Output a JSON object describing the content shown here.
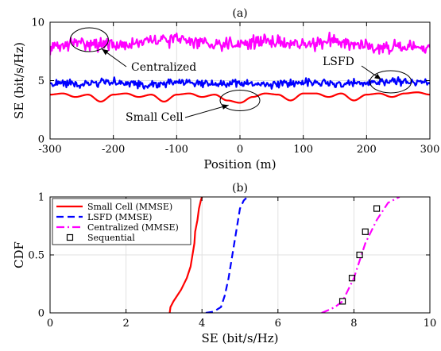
{
  "chart_data": [
    {
      "type": "line",
      "title": "(a)",
      "xlabel": "Position (m)",
      "ylabel": "SE (bit/s/Hz)",
      "xlim": [
        -300,
        300
      ],
      "ylim": [
        0,
        10
      ],
      "xticks": [
        -300,
        -200,
        -100,
        0,
        100,
        200,
        300
      ],
      "yticks": [
        0,
        5,
        10
      ],
      "grid": true,
      "series": [
        {
          "name": "Centralized",
          "color": "#ff00ff",
          "mean": 8.1,
          "x": [
            -300,
            -250,
            -200,
            -150,
            -100,
            -50,
            0,
            50,
            100,
            150,
            200,
            250,
            300
          ],
          "y": [
            7.8,
            8.3,
            8.0,
            8.3,
            8.6,
            8.2,
            8.2,
            8.4,
            8.0,
            8.5,
            8.0,
            7.8,
            7.7
          ]
        },
        {
          "name": "LSFD",
          "color": "#0000ff",
          "mean": 4.8,
          "x": [
            -300,
            -250,
            -200,
            -150,
            -100,
            -50,
            0,
            50,
            100,
            150,
            200,
            250,
            300
          ],
          "y": [
            4.8,
            4.7,
            4.9,
            4.6,
            4.9,
            4.7,
            4.8,
            4.6,
            4.9,
            4.7,
            4.8,
            5.0,
            4.8
          ]
        },
        {
          "name": "Small Cell",
          "color": "#ff0000",
          "x": [
            -300,
            -280,
            -260,
            -240,
            -220,
            -200,
            -180,
            -160,
            -140,
            -120,
            -100,
            -80,
            -60,
            -40,
            -20,
            0,
            20,
            40,
            60,
            80,
            100,
            120,
            140,
            160,
            180,
            200,
            220,
            240,
            260,
            280,
            300
          ],
          "y": [
            3.8,
            3.9,
            3.6,
            3.8,
            3.2,
            3.8,
            3.9,
            3.6,
            3.8,
            3.2,
            3.8,
            3.9,
            3.6,
            3.8,
            3.3,
            3.1,
            3.6,
            3.9,
            3.8,
            3.3,
            3.9,
            3.9,
            3.6,
            3.9,
            3.3,
            3.8,
            3.9,
            3.6,
            3.9,
            4.0,
            3.8
          ]
        }
      ],
      "annotations": [
        {
          "text": "Centralized",
          "target": [
            -238,
            8.6
          ]
        },
        {
          "text": "LSFD",
          "target": [
            238,
            4.8
          ]
        },
        {
          "text": "Small Cell",
          "target": [
            0,
            3.3
          ]
        }
      ]
    },
    {
      "type": "line",
      "title": "(b)",
      "xlabel": "SE (bit/s/Hz)",
      "ylabel": "CDF",
      "xlim": [
        0,
        10
      ],
      "ylim": [
        0,
        1
      ],
      "xticks": [
        0,
        2,
        4,
        6,
        8,
        10
      ],
      "yticks": [
        0,
        0.5,
        1
      ],
      "grid": true,
      "legend_position": "top-left",
      "series": [
        {
          "name": "Small Cell (MMSE)",
          "color": "#ff0000",
          "style": "solid",
          "x": [
            3.15,
            3.17,
            3.25,
            3.45,
            3.6,
            3.7,
            3.75,
            3.8,
            3.82,
            3.88,
            3.92,
            3.97,
            4.0
          ],
          "y": [
            0,
            0.05,
            0.1,
            0.2,
            0.3,
            0.4,
            0.5,
            0.6,
            0.7,
            0.8,
            0.9,
            0.97,
            1.0
          ]
        },
        {
          "name": "LSFD (MMSE)",
          "color": "#0000ff",
          "style": "dashed",
          "x": [
            4.1,
            4.3,
            4.5,
            4.6,
            4.7,
            4.75,
            4.8,
            4.85,
            4.9,
            4.95,
            5.0,
            5.1,
            5.2
          ],
          "y": [
            0,
            0.01,
            0.05,
            0.15,
            0.3,
            0.4,
            0.5,
            0.6,
            0.7,
            0.8,
            0.9,
            0.97,
            1.0
          ]
        },
        {
          "name": "Centralized (MMSE)",
          "color": "#ff00ff",
          "style": "dashdot",
          "x": [
            7.15,
            7.3,
            7.5,
            7.7,
            7.85,
            8.0,
            8.1,
            8.2,
            8.3,
            8.45,
            8.6,
            8.9,
            9.2
          ],
          "y": [
            0,
            0.02,
            0.05,
            0.1,
            0.2,
            0.3,
            0.4,
            0.5,
            0.6,
            0.7,
            0.8,
            0.95,
            1.0
          ]
        },
        {
          "name": "Sequential",
          "color": "#000000",
          "style": "markers",
          "x": [
            7.7,
            7.95,
            8.15,
            8.3,
            8.6
          ],
          "y": [
            0.1,
            0.3,
            0.5,
            0.7,
            0.9
          ]
        }
      ]
    }
  ]
}
